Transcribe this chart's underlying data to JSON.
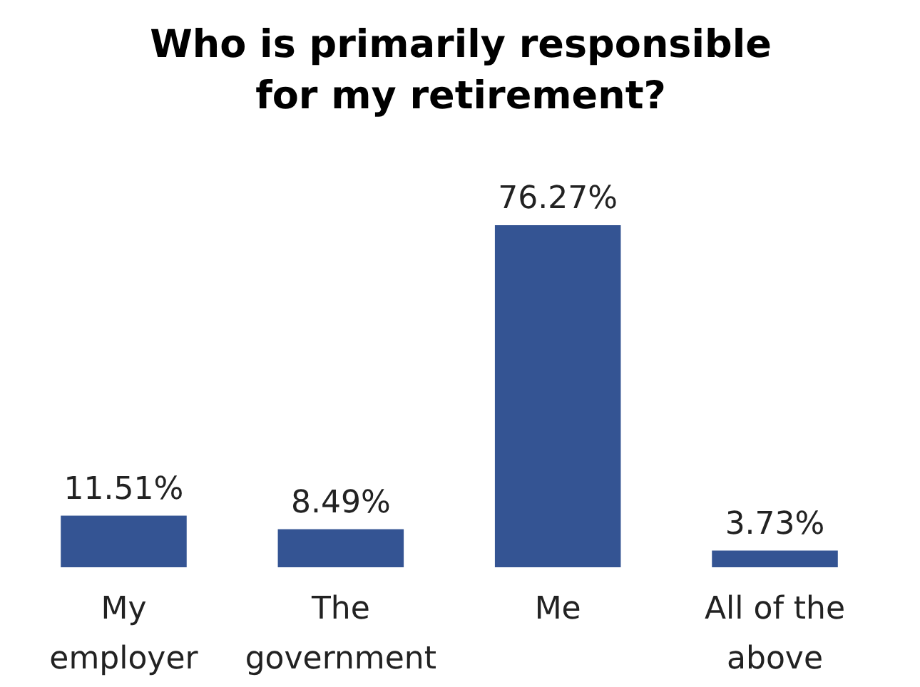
{
  "chart_data": {
    "type": "bar",
    "title": "Who is primarily responsible for my retirement?",
    "categories": [
      "My employer",
      "The government",
      "Me",
      "All of the above"
    ],
    "values": [
      11.51,
      8.49,
      76.27,
      3.73
    ],
    "value_labels": [
      "11.51%",
      "8.49%",
      "76.27%",
      "3.73%"
    ],
    "color": "#345493"
  }
}
